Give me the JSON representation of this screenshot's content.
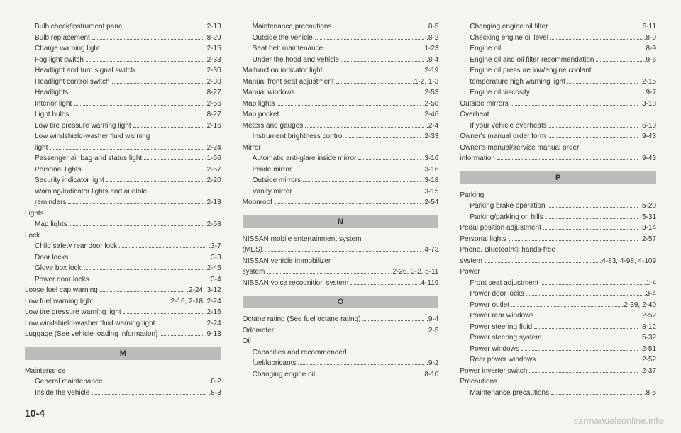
{
  "pageNumber": "10-4",
  "watermark": "carmanualsonline.info",
  "columns": [
    {
      "blocks": [
        {
          "type": "entries",
          "items": [
            {
              "label": "Bulb check/instrument panel",
              "page": ".2-13",
              "indent": true
            },
            {
              "label": "Bulb replacement",
              "page": ".8-29",
              "indent": true
            },
            {
              "label": "Charge warning light",
              "page": ".2-15",
              "indent": true
            },
            {
              "label": "Fog light switch",
              "page": ".2-33",
              "indent": true
            },
            {
              "label": "Headlight and turn signal switch",
              "page": ".2-30",
              "indent": true
            },
            {
              "label": "Headlight control switch",
              "page": ".2-30",
              "indent": true
            },
            {
              "label": "Headlights",
              "page": ".8-27",
              "indent": true
            },
            {
              "label": "Interior light",
              "page": ".2-56",
              "indent": true
            },
            {
              "label": "Light bulbs",
              "page": ".8-27",
              "indent": true
            },
            {
              "label": "Low tire pressure warning light",
              "page": ".2-16",
              "indent": true
            },
            {
              "label": "Low windshield-washer fluid warning",
              "indent": true,
              "cont": true
            },
            {
              "label": "light",
              "page": ".2-24",
              "indent": true
            },
            {
              "label": "Passenger air bag and status light",
              "page": ".1-56",
              "indent": true
            },
            {
              "label": "Personal lights",
              "page": ".2-57",
              "indent": true
            },
            {
              "label": "Security indicator light",
              "page": ".2-20",
              "indent": true
            },
            {
              "label": "Warning/indicator lights and audible",
              "indent": true,
              "cont": true
            },
            {
              "label": "reminders",
              "page": ".2-13",
              "indent": true
            }
          ]
        },
        {
          "type": "group",
          "head": "Lights",
          "items": [
            {
              "label": "Map lights",
              "page": ".2-58",
              "indent": true
            }
          ]
        },
        {
          "type": "group",
          "head": "Lock",
          "items": [
            {
              "label": "Child safety rear door lock",
              "page": ".3-7",
              "indent": true
            },
            {
              "label": "Door locks",
              "page": ".3-3",
              "indent": true
            },
            {
              "label": "Glove box lock",
              "page": ".2-45",
              "indent": true
            },
            {
              "label": "Power door locks",
              "page": ".3-4",
              "indent": true
            }
          ]
        },
        {
          "type": "entries",
          "items": [
            {
              "label": "Loose fuel cap warning",
              "page": ".2-24, 3-12"
            },
            {
              "label": "Low fuel warning light",
              "page": ".2-16, 2-18, 2-24"
            },
            {
              "label": "Low tire pressure warning light",
              "page": ".2-16"
            },
            {
              "label": "Low windshield-washer fluid warning light",
              "page": ".2-24"
            },
            {
              "label": "Luggage (See vehicle loading information)",
              "page": ".9-13"
            }
          ]
        },
        {
          "type": "section",
          "letter": "M"
        },
        {
          "type": "group",
          "head": "Maintenance",
          "items": [
            {
              "label": "General maintenance",
              "page": ".8-2",
              "indent": true
            },
            {
              "label": "Inside the vehicle",
              "page": ".8-3",
              "indent": true
            }
          ]
        }
      ]
    },
    {
      "blocks": [
        {
          "type": "entries",
          "items": [
            {
              "label": "Maintenance precautions",
              "page": ".8-5",
              "indent": true
            },
            {
              "label": "Outside the vehicle",
              "page": ".8-2",
              "indent": true
            },
            {
              "label": "Seat belt maintenance",
              "page": ".1-23",
              "indent": true
            },
            {
              "label": "Under the hood and vehicle",
              "page": ".8-4",
              "indent": true
            }
          ]
        },
        {
          "type": "entries",
          "items": [
            {
              "label": "Malfunction indicator light",
              "page": ".2-19"
            },
            {
              "label": "Manual front seat adjustment",
              "page": ".1-2, 1-3"
            },
            {
              "label": "Manual windows",
              "page": ".2-53"
            },
            {
              "label": "Map lights",
              "page": ".2-58"
            },
            {
              "label": "Map pocket",
              "page": ".2-46"
            },
            {
              "label": "Meters and gauges",
              "page": ".2-4"
            },
            {
              "label": "Instrument brightness control",
              "page": ".2-33",
              "indent": true
            }
          ]
        },
        {
          "type": "group",
          "head": "Mirror",
          "items": [
            {
              "label": "Automatic anti-glare inside mirror",
              "page": ".3-16",
              "indent": true
            },
            {
              "label": "Inside mirror",
              "page": ".3-16",
              "indent": true
            },
            {
              "label": "Outside mirrors",
              "page": ".3-18",
              "indent": true
            },
            {
              "label": "Vanity mirror",
              "page": ".3-15",
              "indent": true
            }
          ]
        },
        {
          "type": "entries",
          "items": [
            {
              "label": "Moonroof",
              "page": ".2-54"
            }
          ]
        },
        {
          "type": "section",
          "letter": "N"
        },
        {
          "type": "entries",
          "items": [
            {
              "label": "NISSAN mobile entertainment system",
              "cont": true
            },
            {
              "label": "(MES)",
              "page": ".4-73"
            },
            {
              "label": "NISSAN vehicle immobilizer",
              "cont": true
            },
            {
              "label": "system",
              "page": ".2-26, 3-2, 5-11"
            },
            {
              "label": "NISSAN voice recognition system",
              "page": ".4-119"
            }
          ]
        },
        {
          "type": "section",
          "letter": "O"
        },
        {
          "type": "entries",
          "items": [
            {
              "label": "Octane rating (See fuel octane rating)",
              "page": ".9-4"
            },
            {
              "label": "Odometer",
              "page": ".2-5"
            }
          ]
        },
        {
          "type": "group",
          "head": "Oil",
          "items": [
            {
              "label": "Capacities and recommended",
              "indent": true,
              "cont": true
            },
            {
              "label": "fuel/lubricants",
              "page": ".9-2",
              "indent": true
            },
            {
              "label": "Changing engine oil",
              "page": ".8-10",
              "indent": true
            }
          ]
        }
      ]
    },
    {
      "blocks": [
        {
          "type": "entries",
          "items": [
            {
              "label": "Changing engine oil filter",
              "page": ".8-11",
              "indent": true
            },
            {
              "label": "Checking engine oil level",
              "page": ".8-9",
              "indent": true
            },
            {
              "label": "Engine oil",
              "page": ".8-9",
              "indent": true
            },
            {
              "label": "Engine oil and oil filter recommendation",
              "page": ".9-6",
              "indent": true
            },
            {
              "label": "Engine oil pressure low/engine coolant",
              "indent": true,
              "cont": true
            },
            {
              "label": "temperature high warning light",
              "page": ".2-15",
              "indent": true
            },
            {
              "label": "Engine oil viscosity",
              "page": ".9-7",
              "indent": true
            }
          ]
        },
        {
          "type": "entries",
          "items": [
            {
              "label": "Outside mirrors",
              "page": ".3-18"
            }
          ]
        },
        {
          "type": "group",
          "head": "Overheat",
          "items": [
            {
              "label": "If your vehicle overheats",
              "page": ".6-10",
              "indent": true
            }
          ]
        },
        {
          "type": "entries",
          "items": [
            {
              "label": "Owner's manual order form",
              "page": ".9-43"
            },
            {
              "label": "Owner's manual/service manual order",
              "cont": true
            },
            {
              "label": "information",
              "page": ".9-43"
            }
          ]
        },
        {
          "type": "section",
          "letter": "P"
        },
        {
          "type": "group",
          "head": "Parking",
          "items": [
            {
              "label": "Parking brake operation",
              "page": ".5-20",
              "indent": true
            },
            {
              "label": "Parking/parking on hills",
              "page": ".5-31",
              "indent": true
            }
          ]
        },
        {
          "type": "entries",
          "items": [
            {
              "label": "Pedal position adjustment",
              "page": ".3-14"
            },
            {
              "label": "Personal lights",
              "page": ".2-57"
            },
            {
              "label": "Phone, Bluetooth® hands-free",
              "cont": true
            },
            {
              "label": "system",
              "page": ".4-83, 4-98, 4-109"
            }
          ]
        },
        {
          "type": "group",
          "head": "Power",
          "items": [
            {
              "label": "Front seat adjustment",
              "page": ".1-4",
              "indent": true
            },
            {
              "label": "Power door locks",
              "page": ".3-4",
              "indent": true
            },
            {
              "label": "Power outlet",
              "page": ".2-39, 2-40",
              "indent": true
            },
            {
              "label": "Power rear windows",
              "page": ".2-52",
              "indent": true
            },
            {
              "label": "Power steering fluid",
              "page": ".8-12",
              "indent": true
            },
            {
              "label": "Power steering system",
              "page": ".5-32",
              "indent": true
            },
            {
              "label": "Power windows",
              "page": ".2-51",
              "indent": true
            },
            {
              "label": "Rear power windows",
              "page": ".2-52",
              "indent": true
            }
          ]
        },
        {
          "type": "entries",
          "items": [
            {
              "label": "Power inverter switch",
              "page": ".2-37"
            }
          ]
        },
        {
          "type": "group",
          "head": "Precautions",
          "items": [
            {
              "label": "Maintenance precautions",
              "page": ".8-5",
              "indent": true
            }
          ]
        }
      ]
    }
  ]
}
